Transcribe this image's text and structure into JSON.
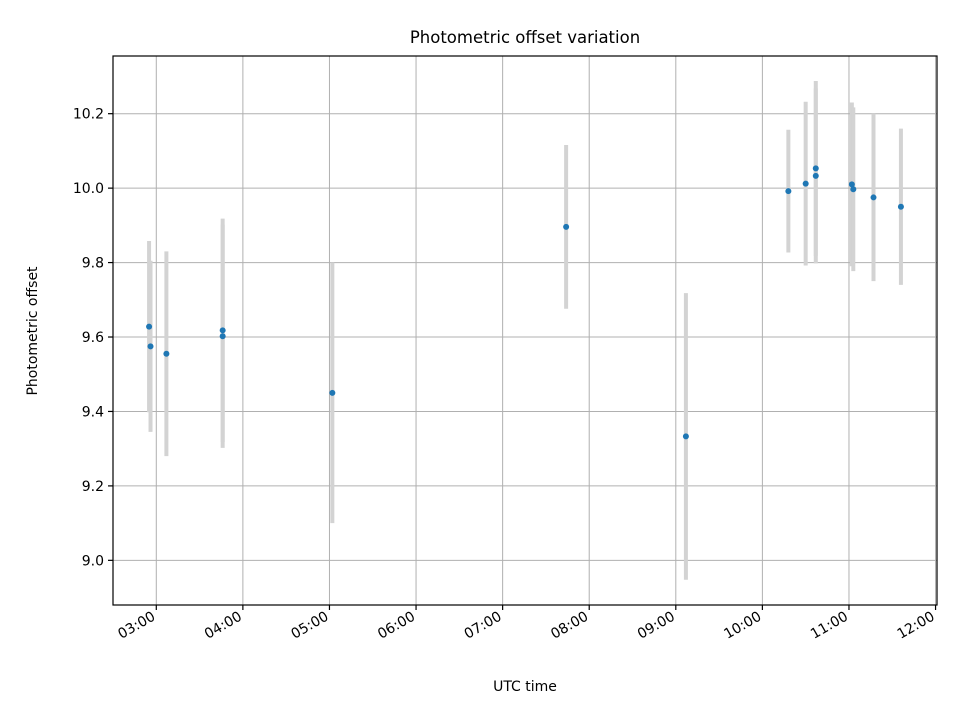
{
  "chart_data": {
    "type": "scatter",
    "title": "Photometric offset variation",
    "xlabel": "UTC time",
    "ylabel": "Photometric offset",
    "xlim": [
      "02:30",
      "12:01"
    ],
    "ylim": [
      8.88,
      10.355
    ],
    "grid": true,
    "x_ticks": [
      "03:00",
      "04:00",
      "05:00",
      "06:00",
      "07:00",
      "08:00",
      "09:00",
      "10:00",
      "11:00",
      "12:00"
    ],
    "y_ticks": [
      "9.0",
      "9.2",
      "9.4",
      "9.6",
      "9.8",
      "10.0",
      "10.2"
    ],
    "colors": {
      "points": "#1f77b4",
      "errorbars": "#d3d3d3",
      "grid": "#b0b0b0"
    },
    "series": [
      {
        "points": [
          {
            "x": "02:55",
            "y": 9.628,
            "err": 0.23
          },
          {
            "x": "02:56",
            "y": 9.575,
            "err": 0.23
          },
          {
            "x": "03:07",
            "y": 9.555,
            "err": 0.275
          },
          {
            "x": "03:46",
            "y": 9.618,
            "err": 0.3
          },
          {
            "x": "03:46",
            "y": 9.602,
            "err": 0.3
          },
          {
            "x": "05:02",
            "y": 9.45,
            "err": 0.35
          },
          {
            "x": "07:44",
            "y": 9.896,
            "err": 0.22
          },
          {
            "x": "09:07",
            "y": 9.333,
            "err": 0.385
          },
          {
            "x": "10:18",
            "y": 9.992,
            "err": 0.165
          },
          {
            "x": "10:30",
            "y": 10.012,
            "err": 0.22
          },
          {
            "x": "10:37",
            "y": 10.053,
            "err": 0.235
          },
          {
            "x": "10:37",
            "y": 10.033,
            "err": 0.235
          },
          {
            "x": "11:02",
            "y": 10.01,
            "err": 0.22
          },
          {
            "x": "11:03",
            "y": 9.997,
            "err": 0.22
          },
          {
            "x": "11:17",
            "y": 9.975,
            "err": 0.225
          },
          {
            "x": "11:36",
            "y": 9.95,
            "err": 0.21
          }
        ]
      }
    ]
  }
}
